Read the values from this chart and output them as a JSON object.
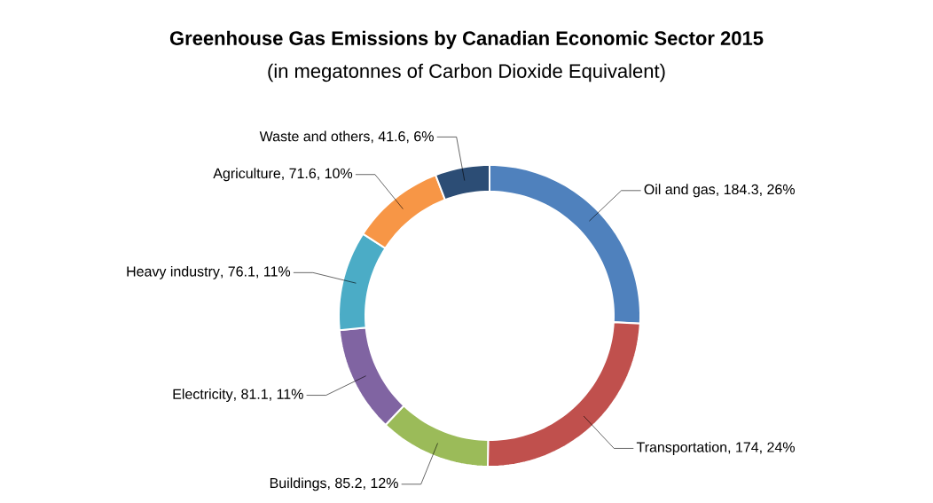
{
  "chart_data": {
    "type": "donut",
    "title": "Greenhouse Gas Emissions by Canadian Economic Sector 2015",
    "subtitle": "(in megatonnes of Carbon Dioxide Equivalent)",
    "categories": [
      "Oil and gas",
      "Transportation",
      "Buildings",
      "Electricity",
      "Heavy industry",
      "Agriculture",
      "Waste and others"
    ],
    "values": [
      184.3,
      174,
      85.2,
      81.1,
      76.1,
      71.6,
      41.6
    ],
    "value_labels": [
      ", 184.3, 26%",
      ", 174, 24%",
      ", 85.2, 12%",
      ", 81.1, 11%",
      ", 76.1, 11%",
      ", 71.6, 10%",
      ", 41.6, 6%"
    ],
    "colors": [
      "#4f81bd",
      "#c0504d",
      "#9bbb59",
      "#8064a2",
      "#4bacc6",
      "#f79646",
      "#2c4d75"
    ]
  }
}
